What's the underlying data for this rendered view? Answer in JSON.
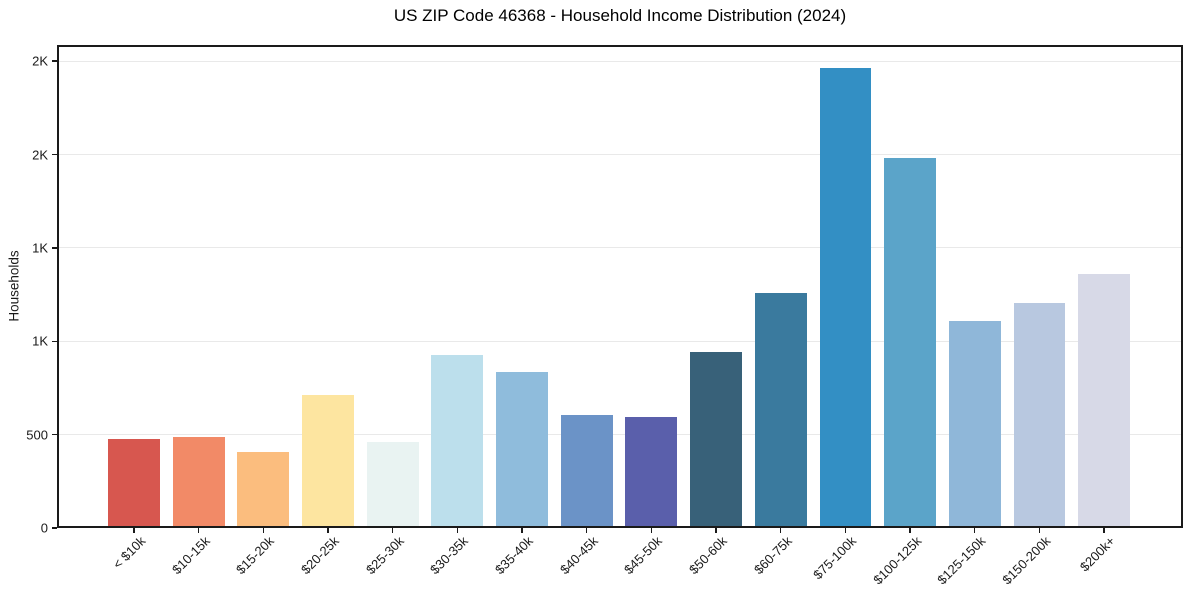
{
  "chart_data": {
    "type": "bar",
    "title": "US ZIP Code 46368 - Household Income Distribution (2024)",
    "xlabel": "",
    "ylabel": "Households",
    "categories": [
      "< $10k",
      "$10-15k",
      "$15-20k",
      "$20-25k",
      "$25-30k",
      "$30-35k",
      "$35-40k",
      "$40-45k",
      "$45-50k",
      "$50-60k",
      "$60-75k",
      "$75-100k",
      "$100-125k",
      "$125-150k",
      "$150-200k",
      "$200k+"
    ],
    "values": [
      477,
      489,
      409,
      714,
      462,
      928,
      837,
      605,
      595,
      941,
      1261,
      2464,
      1981,
      1110,
      1204,
      1362
    ],
    "bar_colors": [
      "#d7574f",
      "#f28a67",
      "#fbbd7e",
      "#fde5a0",
      "#e9f3f2",
      "#bcdfec",
      "#8fbcdc",
      "#6b93c7",
      "#5a5fab",
      "#386179",
      "#3a7a9e",
      "#338fc4",
      "#5ba4c9",
      "#8fb7d9",
      "#b8c8e0",
      "#d7d9e7"
    ],
    "ylim": [
      0,
      2587
    ],
    "ytick_values": [
      0,
      500,
      1000,
      1500,
      2000,
      2500
    ],
    "ytick_labels": [
      "0",
      "500",
      "1K",
      "1K",
      "2K",
      "2K"
    ],
    "grid": "horizontal",
    "legend": "none",
    "xtick_rotation": 45
  },
  "colors": {
    "background": "#ffffff",
    "spine": "#1a1a1a",
    "grid": "#e9e9e9",
    "tick": "#1a1a1a",
    "text": "#1a1a1a",
    "title": "#000000"
  }
}
